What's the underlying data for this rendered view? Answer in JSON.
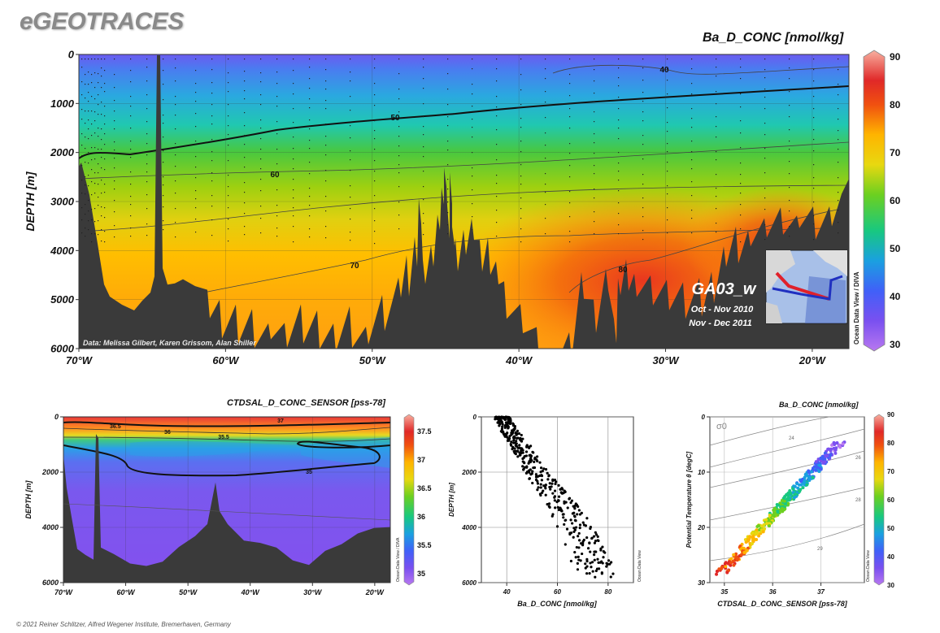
{
  "brand": "eGEOTRACES",
  "footer": "© 2021 Reiner Schlitzer, Alfred Wegener Institute, Bremerhaven, Germany",
  "credit": "Data: Melissa Gilbert, Karen Grissom, Alan Shiller",
  "cruise": {
    "name": "GA03_w",
    "date1": "Oct - Nov 2010",
    "date2": "Nov - Dec 2011"
  },
  "odv_label": "Ocean Data View / DIVA",
  "odv_label_short": "Ocean Data View",
  "colors": {
    "bathymetry": "#3a3a3a",
    "contour": "#222222",
    "track_red": "#e0202a",
    "track_blue": "#2030c0"
  },
  "chart_data": [
    {
      "id": "main-section",
      "type": "heatmap",
      "title": "Ba_D_CONC [nmol/kg]",
      "xlabel": "",
      "ylabel": "DEPTH [m]",
      "x_ticks": [
        "70°W",
        "60°W",
        "50°W",
        "40°W",
        "30°W",
        "20°W"
      ],
      "x_tick_values": [
        -70,
        -60,
        -50,
        -40,
        -30,
        -20
      ],
      "xlim": [
        -70,
        -17.5
      ],
      "y_ticks": [
        "0",
        "1000",
        "2000",
        "3000",
        "4000",
        "5000",
        "6000"
      ],
      "ylim": [
        0,
        6000
      ],
      "colorbar": {
        "range": [
          30,
          90
        ],
        "ticks": [
          "30",
          "40",
          "50",
          "60",
          "70",
          "80",
          "90"
        ]
      },
      "contour_labels": [
        "40",
        "50",
        "60",
        "70",
        "80"
      ],
      "grid": true
    },
    {
      "id": "salinity-section",
      "type": "heatmap",
      "title": "CTDSAL_D_CONC_SENSOR [pss-78]",
      "xlabel": "",
      "ylabel": "DEPTH [m]",
      "x_ticks": [
        "70°W",
        "60°W",
        "50°W",
        "40°W",
        "30°W",
        "20°W"
      ],
      "x_tick_values": [
        -70,
        -60,
        -50,
        -40,
        -30,
        -20
      ],
      "xlim": [
        -70,
        -17.5
      ],
      "y_ticks": [
        "0",
        "2000",
        "4000",
        "6000"
      ],
      "ylim": [
        0,
        6000
      ],
      "colorbar": {
        "range": [
          34.8,
          37.8
        ],
        "ticks": [
          "35",
          "35.5",
          "36",
          "36.5",
          "37",
          "37.5"
        ]
      },
      "contour_labels": [
        "35",
        "35.5",
        "36",
        "36.5",
        "37"
      ],
      "grid": true
    },
    {
      "id": "profile-scatter",
      "type": "scatter",
      "title": "",
      "xlabel": "Ba_D_CONC [nmol/kg]",
      "ylabel": "DEPTH [m]",
      "x_ticks": [
        "40",
        "60",
        "80"
      ],
      "xlim": [
        30,
        90
      ],
      "y_ticks": [
        "0",
        "2000",
        "4000",
        "6000"
      ],
      "ylim": [
        0,
        6000
      ],
      "grid": true,
      "trend": {
        "depth": [
          0,
          500,
          1000,
          1500,
          2000,
          2500,
          3000,
          3500,
          4000,
          4500,
          5000,
          5500,
          5800
        ],
        "ba": [
          38,
          41,
          45,
          49,
          52,
          56,
          60,
          64,
          67,
          70,
          72,
          74,
          76
        ]
      }
    },
    {
      "id": "ts-diagram",
      "type": "scatter",
      "title": "Ba_D_CONC [nmol/kg]",
      "xlabel": "CTDSAL_D_CONC_SENSOR [pss-78]",
      "ylabel": "Potential Temperature θ [degC]",
      "x_ticks": [
        "35",
        "36",
        "37"
      ],
      "xlim": [
        34.7,
        37.9
      ],
      "y_ticks": [
        "0",
        "10",
        "20",
        "30"
      ],
      "ylim": [
        0,
        30
      ],
      "colorbar": {
        "range": [
          30,
          90
        ],
        "ticks": [
          "30",
          "40",
          "50",
          "60",
          "70",
          "80",
          "90"
        ]
      },
      "isopycnal_symbol": "σ0",
      "isopycnal_labels": [
        "24",
        "26",
        "28",
        "29"
      ],
      "grid": true
    }
  ]
}
